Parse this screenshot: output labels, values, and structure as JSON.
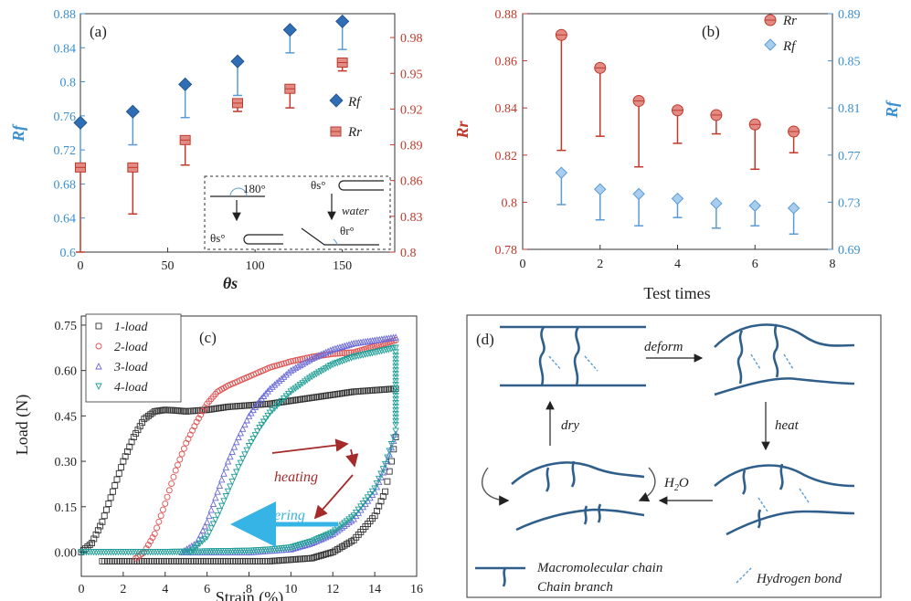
{
  "chart_data": [
    {
      "panel": "(a)",
      "type": "scatter",
      "xlabel": "θs",
      "ylabel_left": "Rf",
      "xlim": [
        0,
        180
      ],
      "xticks": [
        "0",
        "50",
        "100",
        "150"
      ],
      "ylim_left": [
        0.6,
        0.88
      ],
      "yticks_left": [
        "0.6",
        "0.64",
        "0.68",
        "0.72",
        "0.76",
        "0.8",
        "0.84",
        "0.88"
      ],
      "ylim_right": [
        0.8,
        1.0
      ],
      "yticks_right": [
        "0.8",
        "0.83",
        "0.86",
        "0.89",
        "0.92",
        "0.95",
        "0.98"
      ],
      "series": [
        {
          "name": "Rf",
          "axis": "left",
          "color": "#2f6db5",
          "x": [
            0,
            30,
            60,
            90,
            120,
            150
          ],
          "y": [
            0.752,
            0.765,
            0.797,
            0.824,
            0.861,
            0.871
          ],
          "err_low": [
            0.702,
            0.726,
            0.758,
            0.784,
            0.834,
            0.838
          ]
        },
        {
          "name": "Rr",
          "axis": "right",
          "color": "#c0392b",
          "x": [
            0,
            30,
            60,
            90,
            120,
            150
          ],
          "y": [
            0.871,
            0.871,
            0.894,
            0.925,
            0.937,
            0.959
          ],
          "err_low": [
            0.8,
            0.832,
            0.873,
            0.918,
            0.921,
            0.952
          ],
          "err_high": [
            0.871,
            0.871,
            0.896,
            0.928,
            0.939,
            0.962
          ]
        }
      ],
      "inset_labels": {
        "angle1": "180°",
        "angle2": "θs°",
        "angle3": "θs°",
        "water": "water",
        "angle4": "θr°"
      }
    },
    {
      "panel": "(b)",
      "type": "scatter",
      "xlabel": "Test times",
      "ylabel_left": "Rr",
      "ylabel_right": "Rf",
      "xlim": [
        0,
        8
      ],
      "xticks": [
        "0",
        "2",
        "4",
        "6",
        "8"
      ],
      "ylim_left": [
        0.78,
        0.88
      ],
      "yticks_left": [
        "0.78",
        "0.8",
        "0.82",
        "0.84",
        "0.86",
        "0.88"
      ],
      "ylim_right": [
        0.69,
        0.89
      ],
      "yticks_right": [
        "0.69",
        "0.73",
        "0.77",
        "0.81",
        "0.85",
        "0.89"
      ],
      "series": [
        {
          "name": "Rr",
          "axis": "left",
          "color": "#c0392b",
          "x": [
            1,
            2,
            3,
            4,
            5,
            6,
            7
          ],
          "y": [
            0.871,
            0.857,
            0.843,
            0.839,
            0.837,
            0.833,
            0.83
          ],
          "err_low": [
            0.822,
            0.828,
            0.815,
            0.825,
            0.829,
            0.814,
            0.821
          ]
        },
        {
          "name": "Rf",
          "axis": "right",
          "color": "#5b9bd5",
          "x": [
            1,
            2,
            3,
            4,
            5,
            6,
            7
          ],
          "y": [
            0.755,
            0.741,
            0.737,
            0.733,
            0.729,
            0.727,
            0.725
          ],
          "err_low": [
            0.728,
            0.715,
            0.71,
            0.717,
            0.708,
            0.71,
            0.703
          ]
        }
      ]
    },
    {
      "panel": "(c)",
      "type": "line",
      "xlabel": "Strain (%)",
      "ylabel": "Load (N)",
      "xlim": [
        0,
        16
      ],
      "xticks": [
        "0",
        "2",
        "4",
        "6",
        "8",
        "10",
        "12",
        "14",
        "16"
      ],
      "ylim": [
        -0.08,
        0.78
      ],
      "yticks": [
        "0.00",
        "0.15",
        "0.30",
        "0.45",
        "0.60",
        "0.75"
      ],
      "legend_position": "top-left",
      "series": [
        {
          "name": "1-load",
          "color": "#333333",
          "marker": "square",
          "load_x": [
            0,
            0.5,
            1,
            1.5,
            2,
            2.5,
            3,
            3.5,
            4,
            4.5,
            5,
            6,
            7,
            8,
            9,
            10,
            11,
            12,
            13,
            14,
            15
          ],
          "load_y": [
            0.0,
            0.03,
            0.1,
            0.2,
            0.3,
            0.38,
            0.44,
            0.465,
            0.47,
            0.468,
            0.465,
            0.47,
            0.48,
            0.485,
            0.49,
            0.5,
            0.51,
            0.52,
            0.53,
            0.535,
            0.54
          ],
          "unload_x": [
            15,
            14.8,
            14.5,
            14,
            13,
            12,
            11,
            10,
            9,
            7,
            5,
            3,
            1
          ],
          "unload_y": [
            0.38,
            0.3,
            0.2,
            0.12,
            0.04,
            0.0,
            -0.02,
            -0.025,
            -0.03,
            -0.03,
            -0.03,
            -0.03,
            -0.03
          ]
        },
        {
          "name": "2-load",
          "color": "#e05050",
          "marker": "circle",
          "load_x": [
            2.6,
            3,
            3.5,
            4,
            4.5,
            5,
            5.5,
            6,
            6.5,
            7,
            8,
            9,
            10,
            11,
            12,
            13
          ],
          "load_y": [
            -0.02,
            0.0,
            0.06,
            0.16,
            0.27,
            0.36,
            0.43,
            0.49,
            0.53,
            0.55,
            0.58,
            0.61,
            0.63,
            0.645,
            0.655,
            0.66
          ],
          "unload_x": [
            13,
            13.5,
            14,
            14.5,
            15
          ],
          "unload_y": [
            0.66,
            0.67,
            0.68,
            0.69,
            0.7
          ]
        },
        {
          "name": "3-load",
          "color": "#6a6ad8",
          "marker": "triangle-up",
          "load_x": [
            4.8,
            5.5,
            6,
            6.5,
            7,
            7.5,
            8,
            8.5,
            9,
            10,
            11,
            12,
            13,
            14,
            15
          ],
          "load_y": [
            0.0,
            0.03,
            0.1,
            0.2,
            0.3,
            0.38,
            0.45,
            0.5,
            0.54,
            0.6,
            0.64,
            0.67,
            0.69,
            0.7,
            0.71
          ],
          "unload_x": [
            15,
            14.5,
            14,
            13,
            12,
            11,
            10,
            9,
            8,
            7,
            6,
            5
          ],
          "unload_y": [
            0.39,
            0.28,
            0.2,
            0.11,
            0.06,
            0.03,
            0.01,
            0.005,
            0.0,
            0.0,
            0.0,
            0.0
          ]
        },
        {
          "name": "4-load",
          "color": "#1e9e96",
          "marker": "triangle-down",
          "load_x": [
            5.2,
            6,
            6.5,
            7,
            7.5,
            8,
            8.5,
            9,
            10,
            11,
            12,
            13,
            14,
            15
          ],
          "load_y": [
            0.0,
            0.05,
            0.12,
            0.2,
            0.28,
            0.35,
            0.41,
            0.46,
            0.53,
            0.58,
            0.62,
            0.645,
            0.66,
            0.675
          ],
          "unload_x": [
            15,
            14.5,
            14,
            13,
            12,
            11,
            10,
            9,
            8,
            7,
            6,
            5,
            4,
            2,
            0
          ],
          "unload_y": [
            0.4,
            0.29,
            0.21,
            0.12,
            0.065,
            0.035,
            0.015,
            0.008,
            0.004,
            0.003,
            0.002,
            0.001,
            0.0,
            0.0,
            0.0
          ]
        }
      ],
      "annotations": {
        "heating": "heating",
        "watering": "watering"
      }
    }
  ],
  "diagram_d": {
    "panel": "(d)",
    "labels": {
      "deform": "deform",
      "heat": "heat",
      "h2o_main": "H",
      "h2o_sub": "2",
      "h2o_tail": "O",
      "dry": "dry"
    },
    "legend": {
      "chain": "Macromolecular chain",
      "branch": "Chain branch",
      "hbond": "Hydrogen bond"
    }
  },
  "panel_labels": {
    "a": "(a)",
    "b": "(b)",
    "c": "(c)",
    "d": "(d)"
  },
  "colors": {
    "blue_axis": "#3a8fd0",
    "red_axis": "#c0392b",
    "rf_marker": "#2f6db5",
    "rr_marker": "#c0392b",
    "diagram_line": "#2f5f8a"
  }
}
